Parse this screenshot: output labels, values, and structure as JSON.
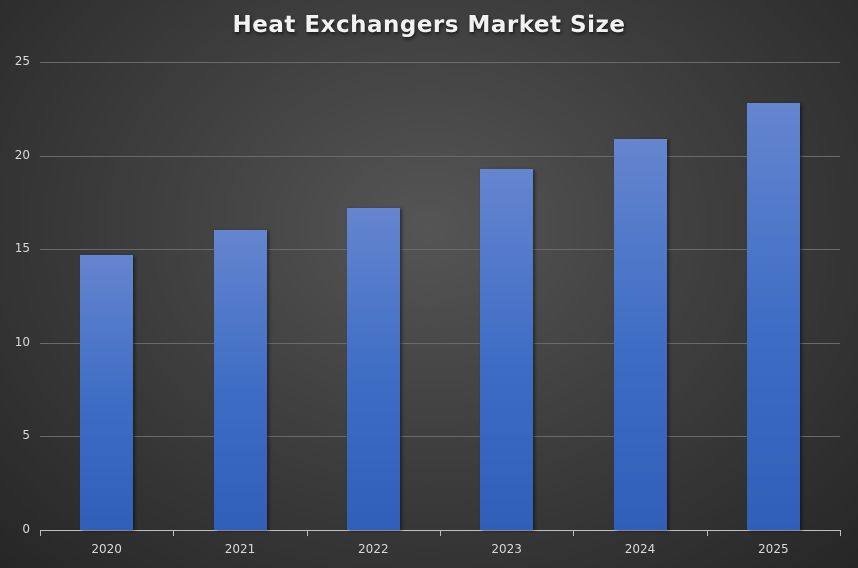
{
  "chart_data": {
    "type": "bar",
    "title": "Heat Exchangers Market Size",
    "categories": [
      "2020",
      "2021",
      "2022",
      "2023",
      "2024",
      "2025"
    ],
    "values": [
      14.7,
      16.0,
      17.2,
      19.3,
      20.9,
      22.8
    ],
    "xlabel": "",
    "ylabel": "",
    "ylim": [
      0,
      25
    ],
    "yticks": [
      "0",
      "5",
      "10",
      "15",
      "20",
      "25"
    ],
    "grid": true,
    "legend": null,
    "bar_color": "#4472c4"
  }
}
